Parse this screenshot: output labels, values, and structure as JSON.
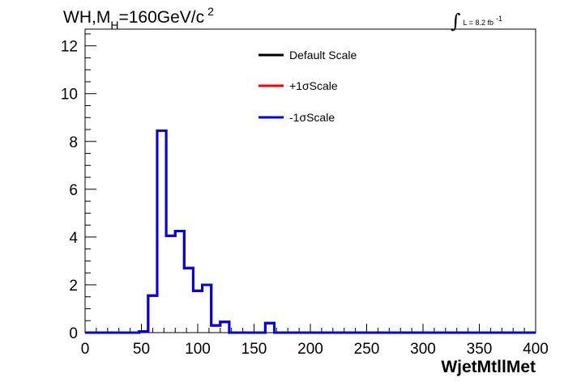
{
  "chart_data": {
    "type": "histogram",
    "title": {
      "main_prefix": "WH,M",
      "subscript": "H",
      "main_suffix": "=160GeV/c",
      "superscript": "2"
    },
    "lumi": {
      "integral_symbol": "∫",
      "text": "L = 8.2 fb",
      "superscript": "-1"
    },
    "xlabel": "WjetMtllMet",
    "ylabel": "",
    "xlim": [
      0,
      400
    ],
    "ylim": [
      0,
      12.7
    ],
    "x_ticks": [
      0,
      50,
      100,
      150,
      200,
      250,
      300,
      350,
      400
    ],
    "x_tick_labels": [
      "0",
      "50",
      "100",
      "150",
      "200",
      "250",
      "300",
      "350",
      "400"
    ],
    "y_ticks": [
      0,
      2,
      4,
      6,
      8,
      10,
      12
    ],
    "y_tick_labels": [
      "0",
      "2",
      "4",
      "6",
      "8",
      "10",
      "12"
    ],
    "bin_width": 8,
    "grid": false,
    "legend_position": "top-center",
    "series": [
      {
        "name": "Default Scale",
        "color": "#000000",
        "bin_edges": [
          0,
          8,
          16,
          24,
          32,
          40,
          48,
          56,
          64,
          72,
          80,
          88,
          96,
          104,
          112,
          120,
          128,
          136,
          144,
          152,
          160,
          168,
          176,
          184,
          192,
          200,
          208,
          216,
          224,
          232,
          240,
          248,
          256,
          264,
          272,
          280,
          288,
          296,
          304,
          312,
          320,
          328,
          336,
          344,
          352,
          360,
          368,
          376,
          384,
          392,
          400
        ],
        "values": [
          0,
          0,
          0,
          0,
          0,
          0,
          0.05,
          1.55,
          8.45,
          4.05,
          4.25,
          2.7,
          1.75,
          2.0,
          0.3,
          0.45,
          0,
          0,
          0,
          0,
          0.4,
          0,
          0,
          0,
          0,
          0,
          0,
          0,
          0,
          0,
          0,
          0,
          0,
          0,
          0,
          0,
          0,
          0,
          0,
          0,
          0,
          0,
          0,
          0,
          0,
          0,
          0,
          0,
          0,
          0
        ]
      },
      {
        "name": "+1σScale",
        "color": "#ff0000",
        "bin_edges": [
          0,
          8,
          16,
          24,
          32,
          40,
          48,
          56,
          64,
          72,
          80,
          88,
          96,
          104,
          112,
          120,
          128,
          136,
          144,
          152,
          160,
          168,
          176,
          184,
          192,
          200,
          208,
          216,
          224,
          232,
          240,
          248,
          256,
          264,
          272,
          280,
          288,
          296,
          304,
          312,
          320,
          328,
          336,
          344,
          352,
          360,
          368,
          376,
          384,
          392,
          400
        ],
        "values": [
          0,
          0,
          0,
          0,
          0,
          0,
          0.05,
          1.55,
          8.45,
          4.05,
          4.25,
          2.7,
          1.75,
          2.0,
          0.3,
          0.45,
          0,
          0,
          0,
          0,
          0.4,
          0,
          0,
          0,
          0,
          0,
          0,
          0,
          0,
          0,
          0,
          0,
          0,
          0,
          0,
          0,
          0,
          0,
          0,
          0,
          0,
          0,
          0,
          0,
          0,
          0,
          0,
          0,
          0,
          0
        ]
      },
      {
        "name": "-1σScale",
        "color": "#0000ee",
        "bin_edges": [
          0,
          8,
          16,
          24,
          32,
          40,
          48,
          56,
          64,
          72,
          80,
          88,
          96,
          104,
          112,
          120,
          128,
          136,
          144,
          152,
          160,
          168,
          176,
          184,
          192,
          200,
          208,
          216,
          224,
          232,
          240,
          248,
          256,
          264,
          272,
          280,
          288,
          296,
          304,
          312,
          320,
          328,
          336,
          344,
          352,
          360,
          368,
          376,
          384,
          392,
          400
        ],
        "values": [
          0,
          0,
          0,
          0,
          0,
          0,
          0.05,
          1.55,
          8.45,
          4.05,
          4.25,
          2.7,
          1.75,
          2.0,
          0.3,
          0.45,
          0,
          0,
          0,
          0,
          0.4,
          0,
          0,
          0,
          0,
          0,
          0,
          0,
          0,
          0,
          0,
          0,
          0,
          0,
          0,
          0,
          0,
          0,
          0,
          0,
          0,
          0,
          0,
          0,
          0,
          0,
          0,
          0,
          0,
          0
        ]
      }
    ]
  }
}
